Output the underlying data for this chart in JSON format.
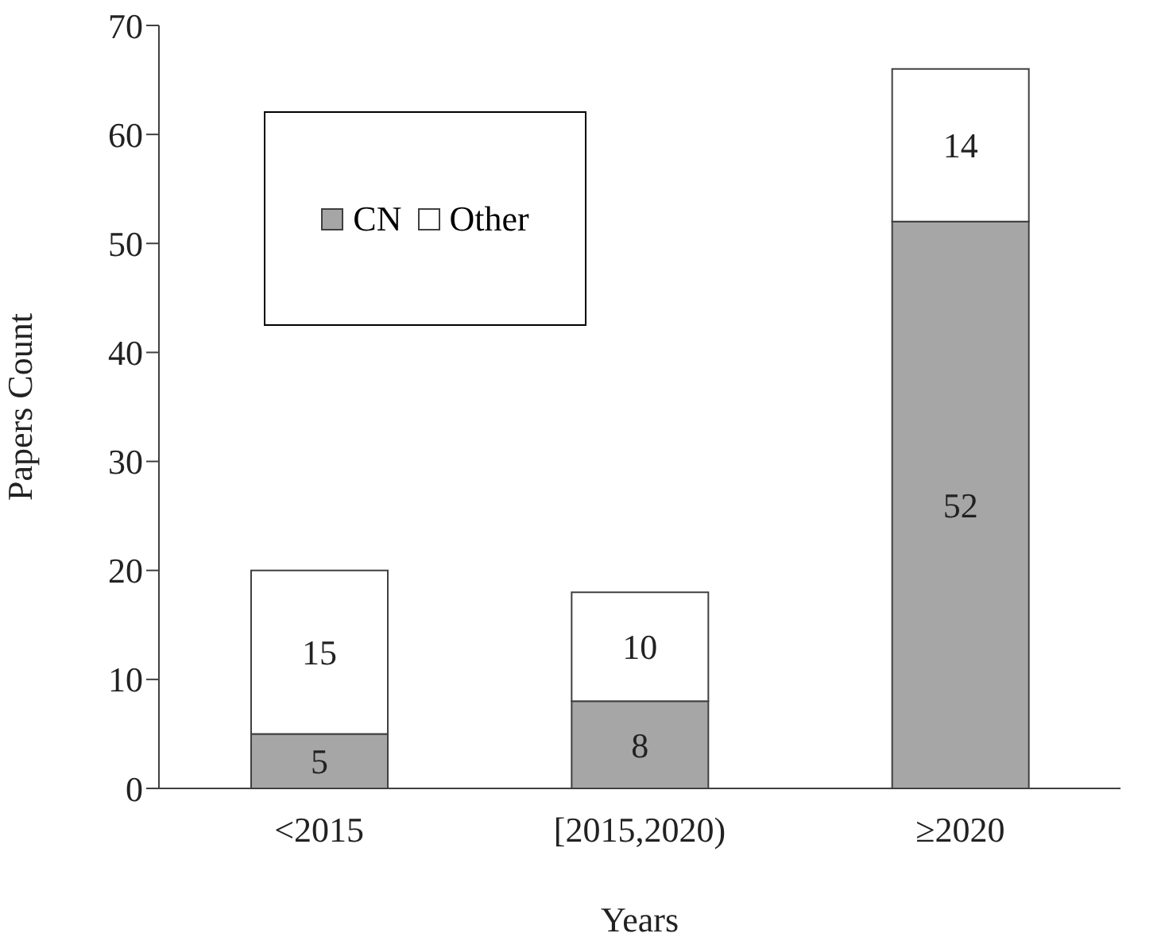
{
  "chart_data": {
    "type": "bar",
    "xlabel": "Years",
    "ylabel": "Papers Count",
    "categories": [
      "<2015",
      "[2015,2020)",
      "≥2020"
    ],
    "stacked": true,
    "series": [
      {
        "name": "CN",
        "color": "#a6a6a6",
        "values": [
          5,
          8,
          52
        ]
      },
      {
        "name": "Other",
        "color": "#ffffff",
        "values": [
          15,
          10,
          14
        ]
      }
    ],
    "ylim": [
      0,
      70
    ],
    "yticks": [
      0,
      10,
      20,
      30,
      40,
      50,
      60,
      70
    ],
    "grid": false,
    "legend": "top left",
    "data_labels": true
  }
}
